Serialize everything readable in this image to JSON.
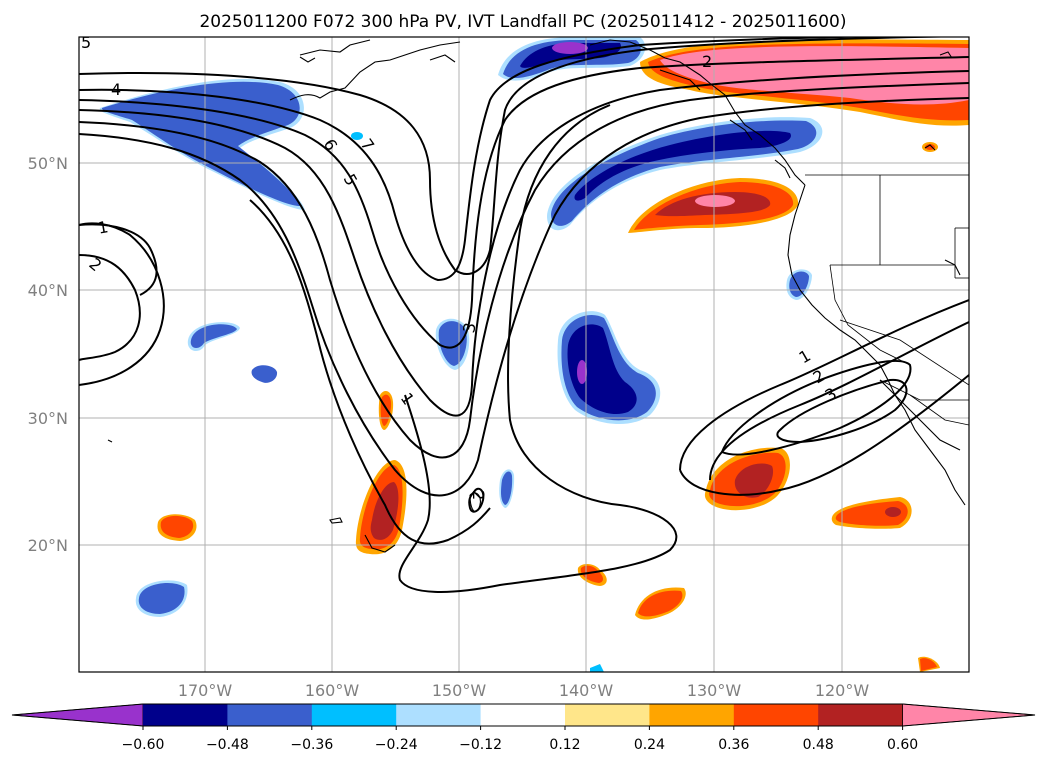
{
  "title": "2025011200 F072 300 hPa PV, IVT Landfall PC (2025011412 - 2025011600)",
  "map": {
    "longitude_labels": [
      "170°W",
      "160°W",
      "150°W",
      "140°W",
      "130°W",
      "120°W"
    ],
    "latitude_labels": [
      "50°N",
      "40°N",
      "30°N",
      "20°N"
    ],
    "contour_labels": [
      "4",
      "6",
      "7",
      "5",
      "2",
      "1",
      "2",
      "3",
      "1",
      "2",
      "2",
      "1",
      "2",
      "3",
      "5"
    ],
    "colors": {
      "land_outline": "#000000",
      "grid": "#b0b0b0"
    }
  },
  "colorbar": {
    "ticks": [
      "−0.60",
      "−0.48",
      "−0.36",
      "−0.24",
      "−0.12",
      "0.12",
      "0.24",
      "0.36",
      "0.48",
      "0.60"
    ],
    "bin_colors": [
      "#9932cc",
      "#00008b",
      "#3a5fcd",
      "#00bfff",
      "#addfff",
      "#ffffff",
      "#ffe68a",
      "#ffa500",
      "#ff4500",
      "#b22222",
      "#ff85a8"
    ]
  }
}
